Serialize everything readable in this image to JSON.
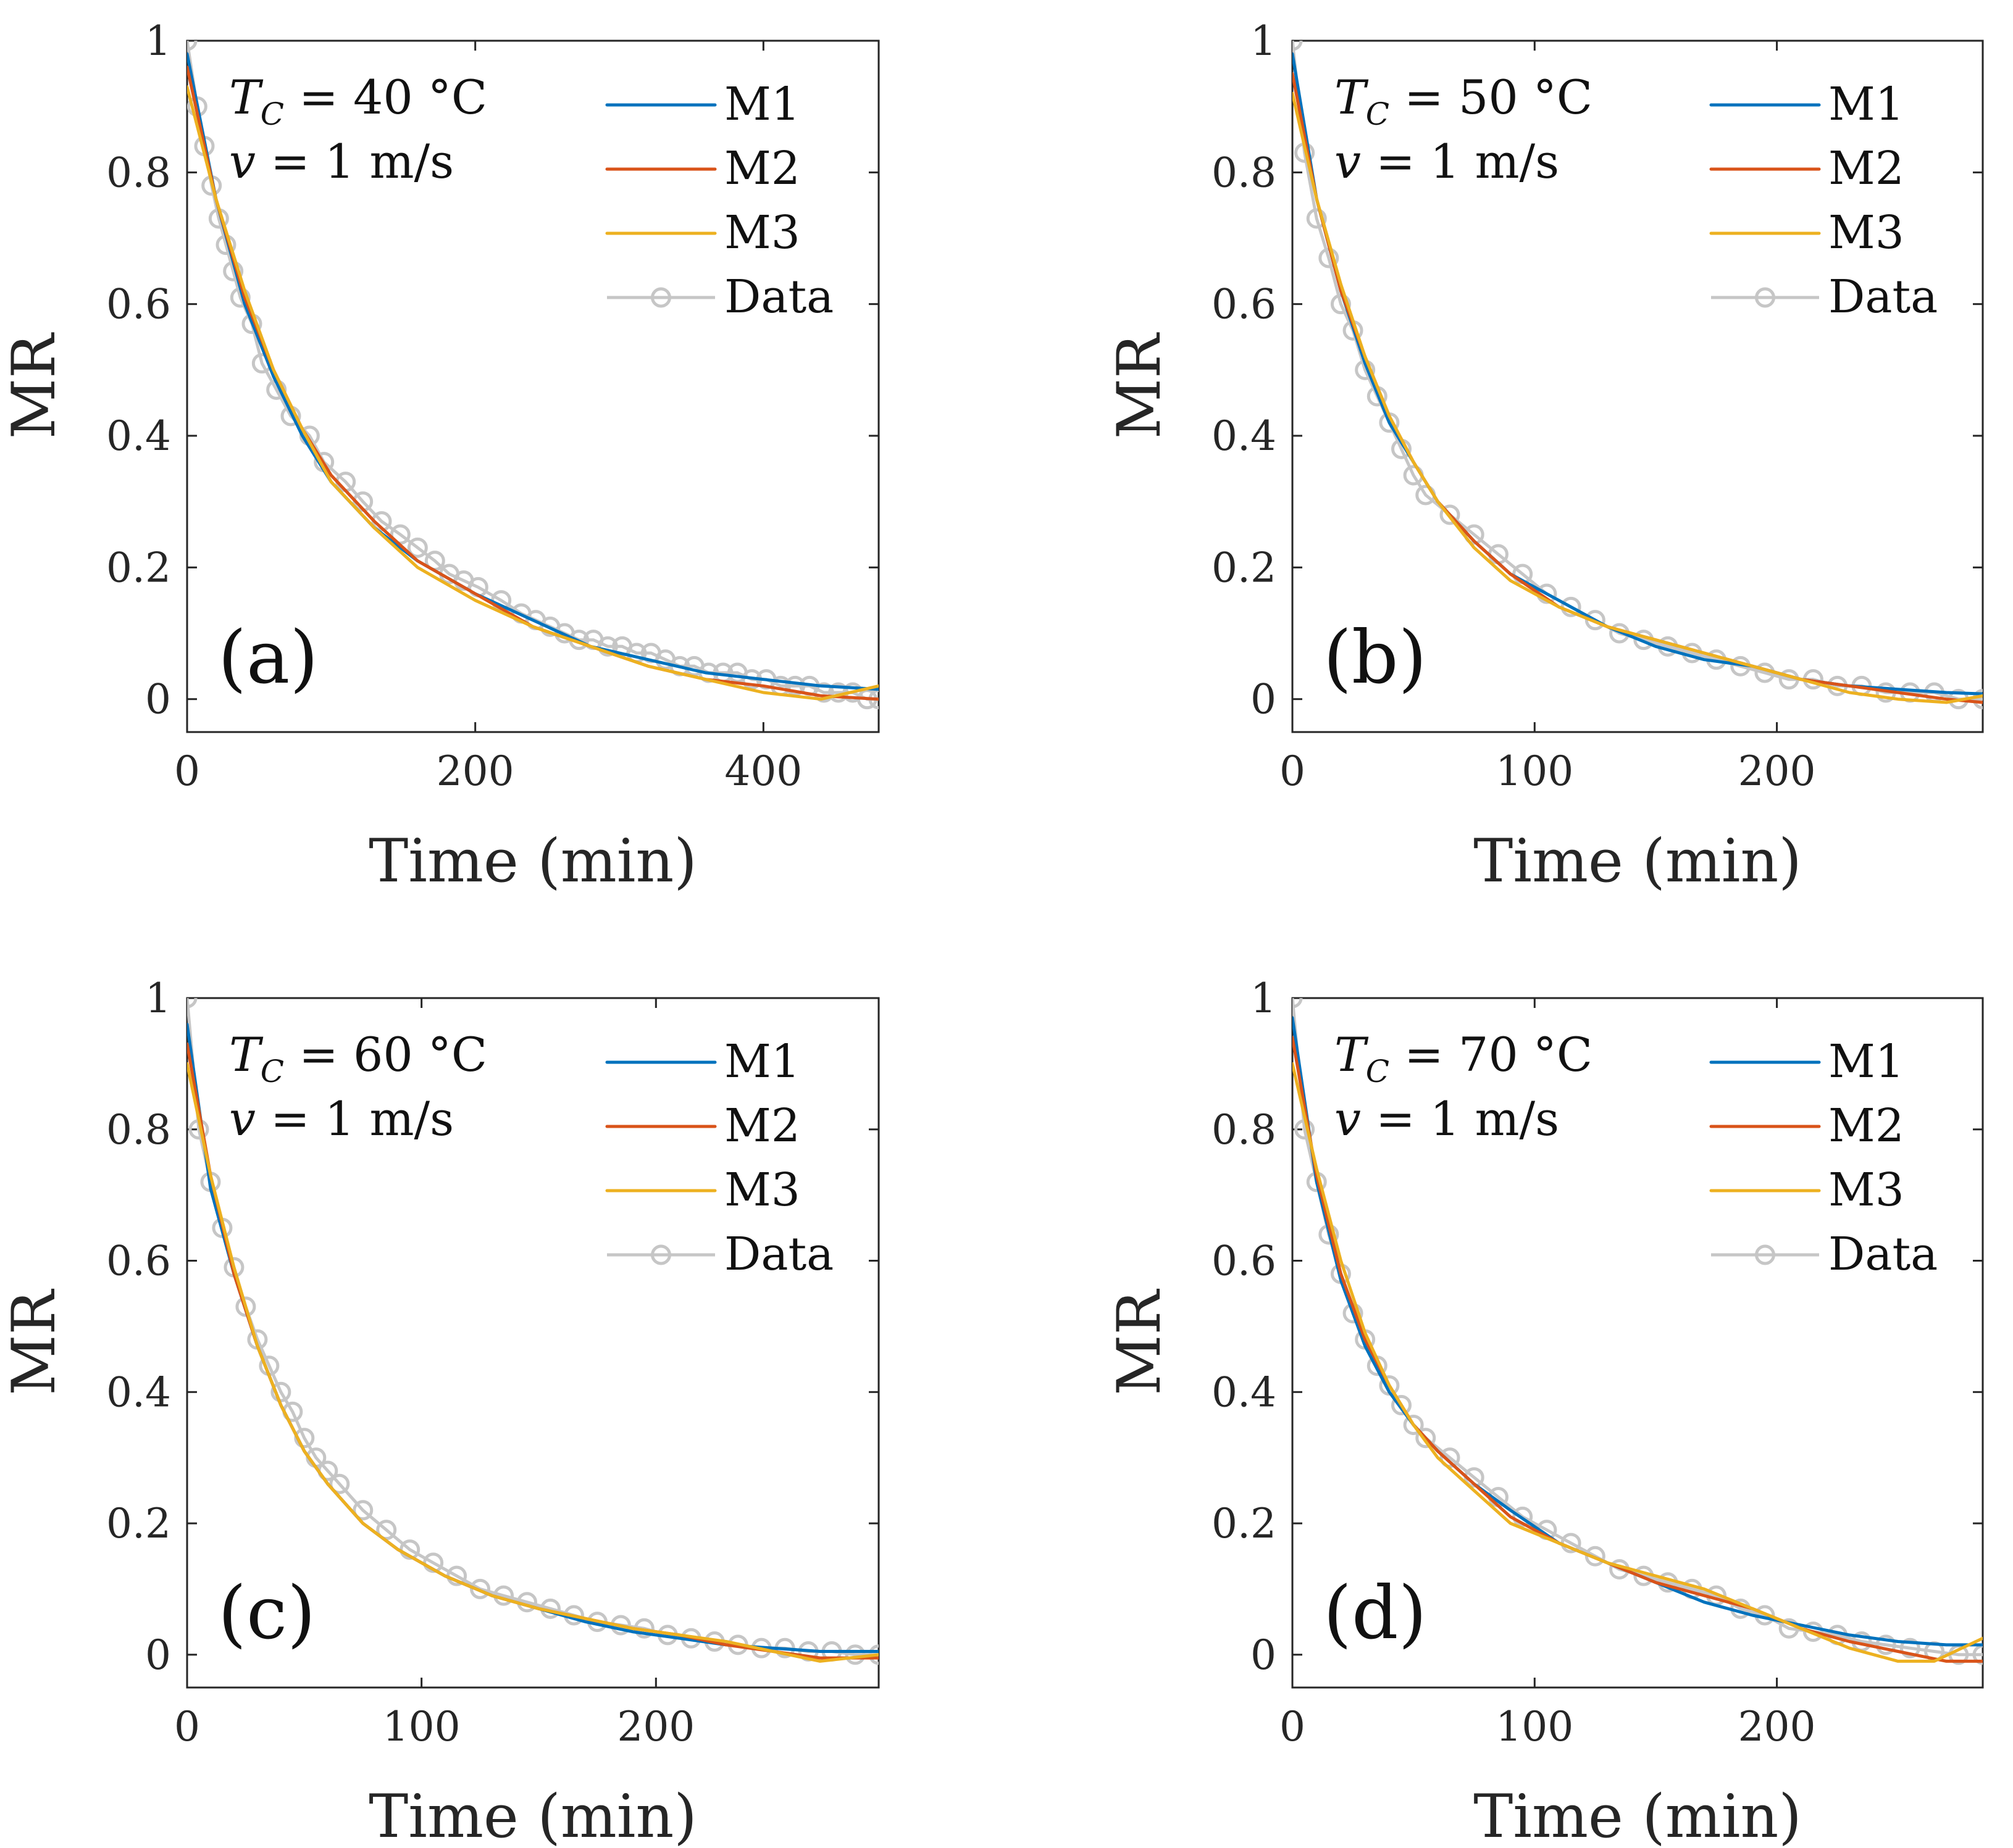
{
  "chart_data": [
    {
      "type": "line",
      "panel_label": "(a)",
      "annotation": {
        "temp_symbol": "T",
        "temp_subscript": "C",
        "temp_text": " = 40 °C",
        "velocity_symbol": "v",
        "velocity_text": " = 1 m/s"
      },
      "xlabel": "Time (min)",
      "ylabel": "MR",
      "xlim": [
        0,
        480
      ],
      "ylim": [
        -0.05,
        1
      ],
      "xticks": [
        0,
        200,
        400
      ],
      "xtick_labels": [
        "0",
        "200",
        "400"
      ],
      "yticks": [
        0,
        0.2,
        0.4,
        0.6,
        0.8,
        1
      ],
      "ytick_labels": [
        "0",
        "0.2",
        "0.4",
        "0.6",
        "0.8",
        "1"
      ],
      "legend": [
        "M1",
        "M2",
        "M3",
        "Data"
      ],
      "legend_position": "top-right",
      "series": [
        {
          "name": "M1",
          "color": "#0072BD",
          "x": [
            0,
            20,
            40,
            60,
            80,
            100,
            130,
            160,
            200,
            240,
            280,
            320,
            360,
            400,
            440,
            480
          ],
          "y": [
            0.98,
            0.76,
            0.6,
            0.49,
            0.4,
            0.33,
            0.26,
            0.21,
            0.16,
            0.12,
            0.08,
            0.06,
            0.04,
            0.03,
            0.02,
            0.015
          ]
        },
        {
          "name": "M2",
          "color": "#D95319",
          "x": [
            0,
            20,
            40,
            60,
            80,
            100,
            130,
            160,
            200,
            240,
            280,
            320,
            360,
            400,
            440,
            480
          ],
          "y": [
            0.96,
            0.76,
            0.61,
            0.5,
            0.41,
            0.34,
            0.27,
            0.21,
            0.16,
            0.11,
            0.08,
            0.05,
            0.03,
            0.02,
            0.005,
            0.0
          ]
        },
        {
          "name": "M3",
          "color": "#EDB120",
          "x": [
            0,
            20,
            40,
            60,
            80,
            100,
            130,
            160,
            200,
            240,
            280,
            320,
            360,
            400,
            440,
            480
          ],
          "y": [
            0.93,
            0.76,
            0.62,
            0.5,
            0.41,
            0.33,
            0.26,
            0.2,
            0.15,
            0.11,
            0.08,
            0.05,
            0.03,
            0.01,
            0.0,
            0.02
          ]
        },
        {
          "name": "Data",
          "color": "#C6C6C6",
          "x": [
            0,
            7,
            12,
            17,
            22,
            27,
            32,
            37,
            45,
            52,
            62,
            72,
            85,
            95,
            110,
            122,
            135,
            148,
            160,
            172,
            182,
            192,
            202,
            218,
            232,
            242,
            252,
            262,
            272,
            282,
            292,
            302,
            312,
            322,
            332,
            342,
            352,
            362,
            372,
            382,
            392,
            402,
            412,
            422,
            432,
            442,
            452,
            462,
            472,
            480
          ],
          "y": [
            1.0,
            0.9,
            0.84,
            0.78,
            0.73,
            0.69,
            0.65,
            0.61,
            0.57,
            0.51,
            0.47,
            0.43,
            0.4,
            0.36,
            0.33,
            0.3,
            0.27,
            0.25,
            0.23,
            0.21,
            0.19,
            0.18,
            0.17,
            0.15,
            0.13,
            0.12,
            0.11,
            0.1,
            0.09,
            0.09,
            0.08,
            0.08,
            0.07,
            0.07,
            0.06,
            0.05,
            0.05,
            0.04,
            0.04,
            0.04,
            0.03,
            0.03,
            0.02,
            0.02,
            0.02,
            0.01,
            0.01,
            0.01,
            0.0,
            0.0
          ]
        }
      ]
    },
    {
      "type": "line",
      "panel_label": "(b)",
      "annotation": {
        "temp_symbol": "T",
        "temp_subscript": "C",
        "temp_text": " = 50 °C",
        "velocity_symbol": "v",
        "velocity_text": " = 1 m/s"
      },
      "xlabel": "Time (min)",
      "ylabel": "MR",
      "xlim": [
        0,
        285
      ],
      "ylim": [
        -0.05,
        1
      ],
      "xticks": [
        0,
        100,
        200
      ],
      "xtick_labels": [
        "0",
        "100",
        "200"
      ],
      "yticks": [
        0,
        0.2,
        0.4,
        0.6,
        0.8,
        1
      ],
      "ytick_labels": [
        "0",
        "0.2",
        "0.4",
        "0.6",
        "0.8",
        "1"
      ],
      "legend": [
        "M1",
        "M2",
        "M3",
        "Data"
      ],
      "legend_position": "top-right",
      "series": [
        {
          "name": "M1",
          "color": "#0072BD",
          "x": [
            0,
            10,
            20,
            30,
            40,
            50,
            60,
            75,
            90,
            110,
            130,
            150,
            170,
            190,
            210,
            230,
            250,
            270,
            285
          ],
          "y": [
            0.98,
            0.76,
            0.62,
            0.51,
            0.42,
            0.36,
            0.3,
            0.24,
            0.19,
            0.15,
            0.11,
            0.08,
            0.06,
            0.05,
            0.03,
            0.02,
            0.015,
            0.01,
            0.008
          ]
        },
        {
          "name": "M2",
          "color": "#D95319",
          "x": [
            0,
            10,
            20,
            30,
            40,
            50,
            60,
            75,
            90,
            110,
            130,
            150,
            170,
            190,
            210,
            230,
            250,
            270,
            285
          ],
          "y": [
            0.95,
            0.76,
            0.62,
            0.52,
            0.43,
            0.36,
            0.3,
            0.24,
            0.19,
            0.14,
            0.11,
            0.09,
            0.07,
            0.05,
            0.03,
            0.02,
            0.01,
            0.0,
            -0.005
          ]
        },
        {
          "name": "M3",
          "color": "#EDB120",
          "x": [
            0,
            10,
            20,
            30,
            40,
            50,
            60,
            75,
            90,
            110,
            130,
            150,
            170,
            190,
            210,
            230,
            250,
            270,
            285
          ],
          "y": [
            0.92,
            0.76,
            0.63,
            0.52,
            0.43,
            0.36,
            0.3,
            0.23,
            0.18,
            0.14,
            0.11,
            0.09,
            0.07,
            0.05,
            0.03,
            0.01,
            0.0,
            -0.005,
            0.005
          ]
        },
        {
          "name": "Data",
          "color": "#C6C6C6",
          "x": [
            0,
            5,
            10,
            15,
            20,
            25,
            30,
            35,
            40,
            45,
            50,
            55,
            65,
            75,
            85,
            95,
            105,
            115,
            125,
            135,
            145,
            155,
            165,
            175,
            185,
            195,
            205,
            215,
            225,
            235,
            245,
            255,
            265,
            275,
            285
          ],
          "y": [
            1.0,
            0.83,
            0.73,
            0.67,
            0.6,
            0.56,
            0.5,
            0.46,
            0.42,
            0.38,
            0.34,
            0.31,
            0.28,
            0.25,
            0.22,
            0.19,
            0.16,
            0.14,
            0.12,
            0.1,
            0.09,
            0.08,
            0.07,
            0.06,
            0.05,
            0.04,
            0.03,
            0.03,
            0.02,
            0.02,
            0.01,
            0.01,
            0.01,
            0.0,
            0.0
          ]
        }
      ]
    },
    {
      "type": "line",
      "panel_label": "(c)",
      "annotation": {
        "temp_symbol": "T",
        "temp_subscript": "C",
        "temp_text": " = 60 °C",
        "velocity_symbol": "v",
        "velocity_text": " = 1 m/s"
      },
      "xlabel": "Time (min)",
      "ylabel": "MR",
      "xlim": [
        0,
        295
      ],
      "ylim": [
        -0.05,
        1
      ],
      "xticks": [
        0,
        100,
        200
      ],
      "xtick_labels": [
        "0",
        "100",
        "200"
      ],
      "yticks": [
        0,
        0.2,
        0.4,
        0.6,
        0.8,
        1
      ],
      "ytick_labels": [
        "0",
        "0.2",
        "0.4",
        "0.6",
        "0.8",
        "1"
      ],
      "legend": [
        "M1",
        "M2",
        "M3",
        "Data"
      ],
      "legend_position": "top-right",
      "series": [
        {
          "name": "M1",
          "color": "#0072BD",
          "x": [
            0,
            10,
            20,
            30,
            40,
            50,
            60,
            75,
            90,
            110,
            130,
            150,
            170,
            190,
            210,
            230,
            250,
            270,
            295
          ],
          "y": [
            0.96,
            0.71,
            0.58,
            0.47,
            0.38,
            0.31,
            0.26,
            0.2,
            0.16,
            0.12,
            0.09,
            0.07,
            0.05,
            0.035,
            0.025,
            0.015,
            0.01,
            0.005,
            0.005
          ]
        },
        {
          "name": "M2",
          "color": "#D95319",
          "x": [
            0,
            10,
            20,
            30,
            40,
            50,
            60,
            75,
            90,
            110,
            130,
            150,
            170,
            190,
            210,
            230,
            250,
            270,
            295
          ],
          "y": [
            0.93,
            0.73,
            0.58,
            0.47,
            0.38,
            0.31,
            0.26,
            0.2,
            0.16,
            0.12,
            0.09,
            0.07,
            0.055,
            0.04,
            0.03,
            0.015,
            0.005,
            -0.005,
            -0.005
          ]
        },
        {
          "name": "M3",
          "color": "#EDB120",
          "x": [
            0,
            10,
            20,
            30,
            40,
            50,
            60,
            75,
            90,
            110,
            130,
            150,
            170,
            190,
            210,
            230,
            250,
            270,
            295
          ],
          "y": [
            0.9,
            0.73,
            0.59,
            0.47,
            0.38,
            0.31,
            0.26,
            0.2,
            0.16,
            0.12,
            0.09,
            0.07,
            0.055,
            0.04,
            0.03,
            0.02,
            0.005,
            -0.01,
            0.0
          ]
        },
        {
          "name": "Data",
          "color": "#C6C6C6",
          "x": [
            0,
            5,
            10,
            15,
            20,
            25,
            30,
            35,
            40,
            45,
            50,
            55,
            60,
            65,
            75,
            85,
            95,
            105,
            115,
            125,
            135,
            145,
            155,
            165,
            175,
            185,
            195,
            205,
            215,
            225,
            235,
            245,
            255,
            265,
            275,
            285,
            295
          ],
          "y": [
            1.0,
            0.8,
            0.72,
            0.65,
            0.59,
            0.53,
            0.48,
            0.44,
            0.4,
            0.37,
            0.33,
            0.3,
            0.28,
            0.26,
            0.22,
            0.19,
            0.16,
            0.14,
            0.12,
            0.1,
            0.09,
            0.08,
            0.07,
            0.06,
            0.05,
            0.045,
            0.04,
            0.03,
            0.025,
            0.02,
            0.015,
            0.01,
            0.01,
            0.005,
            0.005,
            0.0,
            0.0
          ]
        }
      ]
    },
    {
      "type": "line",
      "panel_label": "(d)",
      "annotation": {
        "temp_symbol": "T",
        "temp_subscript": "C",
        "temp_text": " = 70 °C",
        "velocity_symbol": "v",
        "velocity_text": " = 1 m/s"
      },
      "xlabel": "Time (min)",
      "ylabel": "MR",
      "xlim": [
        0,
        285
      ],
      "ylim": [
        -0.05,
        1
      ],
      "xticks": [
        0,
        100,
        200
      ],
      "xtick_labels": [
        "0",
        "100",
        "200"
      ],
      "yticks": [
        0,
        0.2,
        0.4,
        0.6,
        0.8,
        1
      ],
      "ytick_labels": [
        "0",
        "0.2",
        "0.4",
        "0.6",
        "0.8",
        "1"
      ],
      "legend": [
        "M1",
        "M2",
        "M3",
        "Data"
      ],
      "legend_position": "top-right",
      "series": [
        {
          "name": "M1",
          "color": "#0072BD",
          "x": [
            0,
            10,
            20,
            30,
            40,
            50,
            60,
            75,
            90,
            110,
            130,
            150,
            170,
            190,
            210,
            230,
            250,
            270,
            285
          ],
          "y": [
            0.97,
            0.72,
            0.57,
            0.47,
            0.4,
            0.35,
            0.31,
            0.26,
            0.22,
            0.17,
            0.14,
            0.11,
            0.08,
            0.06,
            0.045,
            0.03,
            0.02,
            0.015,
            0.015
          ]
        },
        {
          "name": "M2",
          "color": "#D95319",
          "x": [
            0,
            10,
            20,
            30,
            40,
            50,
            60,
            75,
            90,
            110,
            130,
            150,
            170,
            190,
            210,
            230,
            250,
            270,
            285
          ],
          "y": [
            0.94,
            0.73,
            0.58,
            0.48,
            0.41,
            0.35,
            0.31,
            0.26,
            0.21,
            0.17,
            0.14,
            0.11,
            0.09,
            0.07,
            0.04,
            0.02,
            0.005,
            -0.01,
            -0.01
          ]
        },
        {
          "name": "M3",
          "color": "#EDB120",
          "x": [
            0,
            10,
            20,
            30,
            40,
            50,
            60,
            75,
            90,
            110,
            130,
            150,
            170,
            190,
            210,
            230,
            250,
            265,
            285
          ],
          "y": [
            0.9,
            0.74,
            0.6,
            0.49,
            0.41,
            0.35,
            0.3,
            0.25,
            0.2,
            0.17,
            0.14,
            0.12,
            0.1,
            0.07,
            0.04,
            0.01,
            -0.01,
            -0.01,
            0.025
          ]
        },
        {
          "name": "Data",
          "color": "#C6C6C6",
          "x": [
            0,
            5,
            10,
            15,
            20,
            25,
            30,
            35,
            40,
            45,
            50,
            55,
            65,
            75,
            85,
            95,
            105,
            115,
            125,
            135,
            145,
            155,
            165,
            175,
            185,
            195,
            205,
            215,
            225,
            235,
            245,
            255,
            265,
            275,
            285
          ],
          "y": [
            1.0,
            0.8,
            0.72,
            0.64,
            0.58,
            0.52,
            0.48,
            0.44,
            0.41,
            0.38,
            0.35,
            0.33,
            0.3,
            0.27,
            0.24,
            0.21,
            0.19,
            0.17,
            0.15,
            0.13,
            0.12,
            0.11,
            0.1,
            0.09,
            0.07,
            0.06,
            0.04,
            0.035,
            0.03,
            0.02,
            0.015,
            0.01,
            0.005,
            0.0,
            0.0
          ]
        }
      ]
    }
  ]
}
